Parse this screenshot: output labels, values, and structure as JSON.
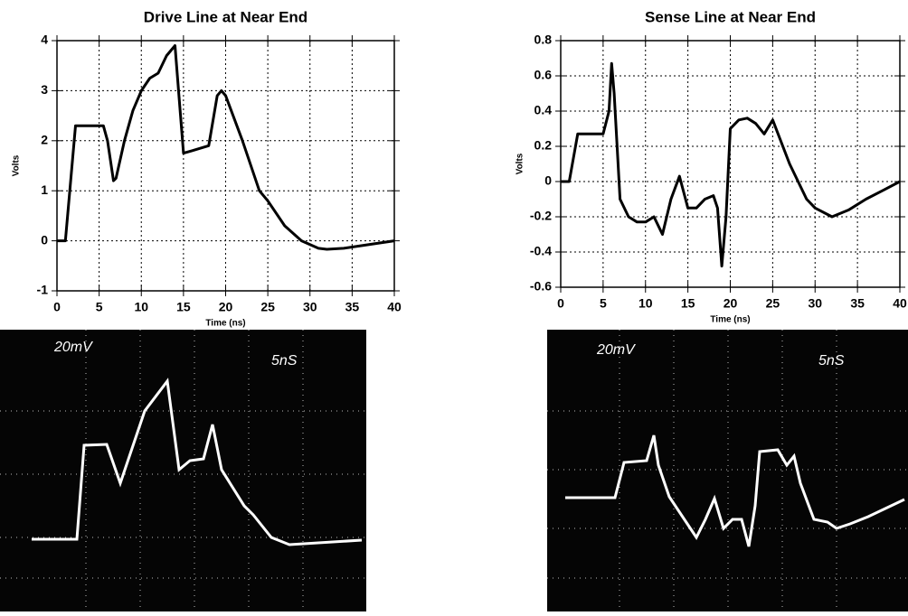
{
  "chart_data": [
    {
      "type": "line",
      "title": "Drive Line at Near End",
      "xlabel": "Time (ns)",
      "ylabel": "Volts",
      "x": [
        0,
        1,
        2.2,
        5.5,
        6,
        6.7,
        7,
        8,
        9,
        10,
        11,
        12,
        13,
        14,
        15,
        16,
        18,
        19,
        19.5,
        20,
        22,
        24,
        25,
        27,
        29,
        31,
        32,
        34,
        36,
        38,
        40
      ],
      "values": [
        0,
        0,
        2.3,
        2.3,
        2.0,
        1.2,
        1.25,
        2.0,
        2.6,
        3.0,
        3.25,
        3.35,
        3.7,
        3.9,
        1.75,
        1.8,
        1.9,
        2.9,
        3.0,
        2.9,
        2.0,
        1.0,
        0.8,
        0.3,
        0,
        -0.15,
        -0.17,
        -0.15,
        -0.1,
        -0.05,
        0
      ],
      "color": "#000000",
      "xlim": [
        0,
        40
      ],
      "ylim": [
        -1,
        4
      ],
      "xticks": [
        0,
        5,
        10,
        15,
        20,
        25,
        30,
        35,
        40
      ],
      "yticks": [
        -1,
        0,
        1,
        2,
        3,
        4
      ],
      "grid": true
    },
    {
      "type": "line",
      "title": "Sense Line at Near End",
      "xlabel": "Time (ns)",
      "ylabel": "Volts",
      "x": [
        0,
        1,
        2,
        5,
        5.7,
        6,
        6.3,
        7,
        8,
        9,
        10,
        11,
        12,
        13,
        14,
        15,
        16,
        17,
        18,
        18.5,
        19,
        19.5,
        20,
        21,
        22,
        23,
        24,
        25,
        27,
        29,
        30,
        32,
        34,
        36,
        38,
        40
      ],
      "values": [
        0,
        0,
        0.27,
        0.27,
        0.4,
        0.67,
        0.5,
        -0.1,
        -0.2,
        -0.23,
        -0.23,
        -0.2,
        -0.3,
        -0.1,
        0.03,
        -0.15,
        -0.15,
        -0.1,
        -0.08,
        -0.15,
        -0.48,
        -0.2,
        0.3,
        0.35,
        0.36,
        0.33,
        0.27,
        0.35,
        0.1,
        -0.1,
        -0.15,
        -0.2,
        -0.16,
        -0.1,
        -0.05,
        0
      ],
      "color": "#000000",
      "xlim": [
        0,
        40
      ],
      "ylim": [
        -0.6,
        0.8
      ],
      "xticks": [
        0,
        5,
        10,
        15,
        20,
        25,
        30,
        35,
        40
      ],
      "yticks": [
        -0.6,
        -0.4,
        -0.2,
        0,
        0.2,
        0.4,
        0.6,
        0.8
      ],
      "grid": true
    }
  ],
  "scope_photos": [
    {
      "volts_per_div": "20mV",
      "time_per_div": "5nS"
    },
    {
      "volts_per_div": "20mV",
      "time_per_div": "5nS"
    }
  ]
}
